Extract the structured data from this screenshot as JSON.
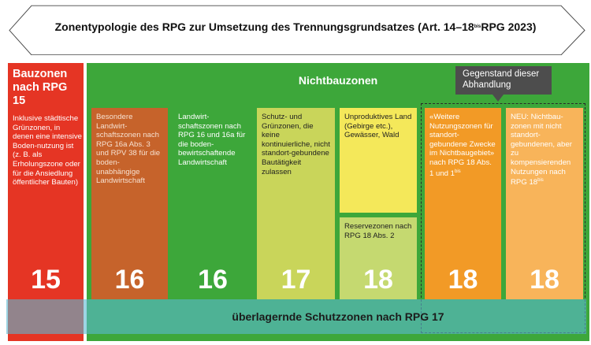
{
  "banner": {
    "title": "Zonentypologie des RPG zur Umsetzung des Trennungsgrundsatzes (Art. 14–18",
    "title_sup": "bis",
    "title_end": " RPG 2023)"
  },
  "colors": {
    "red": "#e53524",
    "green": "#3da73a",
    "orange_dark": "#c6632b",
    "lime": "#c9d55a",
    "yellow": "#f4e85a",
    "light_green": "#c5d970",
    "orange": "#f29a26",
    "light_orange": "#f8b45a",
    "overlay": "#5ab9d2",
    "tooltip": "#4d4d4d"
  },
  "bauzonen": {
    "title": "Bauzonen nach RPG 15",
    "desc": "Inklusive städtische Grünzonen, in denen eine intensive Boden-nutzung ist (z. B. als Erholungszone oder für die Ansiedlung öffentlicher Bauten)",
    "number": "15"
  },
  "nichtbauzonen": {
    "title": "Nichtbauzonen"
  },
  "tooltip": {
    "text": "Gegenstand dieser Abhandlung"
  },
  "columns": [
    {
      "text": "Besondere Landwirt-schaftszonen nach RPG 16a Abs. 3 und RPV 38 für die boden-unabhängige Landwirtschaft",
      "number": "16"
    },
    {
      "text": "Landwirt-schaftszonen nach RPG 16 und 16a für die boden-bewirtschaftende Landwirtschaft",
      "number": "16"
    },
    {
      "text": "Schutz- und Grünzonen, die keine kontinuierliche, nicht standort-gebundene Bautätigkeit zulassen",
      "number": "17"
    },
    {
      "text": "Unproduktives Land (Gebirge etc.), Gewässer, Wald",
      "number": "18"
    },
    {
      "text": "Reservezonen nach RPG 18 Abs. 2"
    },
    {
      "text": "«Weitere Nutzungszonen für standort-gebundene Zwecke im Nichtbaugebiet» nach RPG 18 Abs. 1 und 1",
      "sup": "bis",
      "number": "18"
    },
    {
      "text": "NEU: Nichtbau-zonen mit nicht standort-gebundenen, aber zu kompensierenden Nutzungen nach RPG 18",
      "sup": "bis",
      "number": "18"
    }
  ],
  "overlay": {
    "text": "überlagernde Schutzzonen nach RPG 17"
  }
}
